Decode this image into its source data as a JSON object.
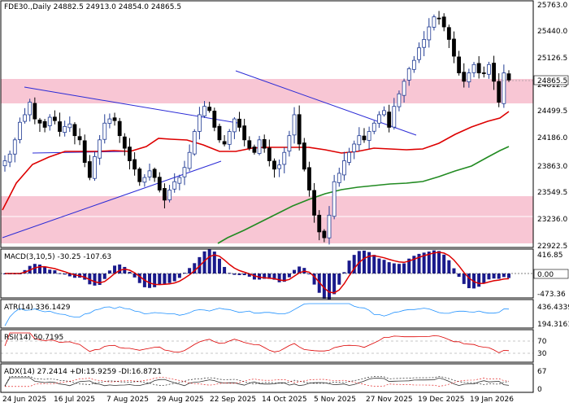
{
  "main": {
    "header": "FDE30.,Daily  24882.5 24913.0 24854.0 24865.5",
    "y_labels": [
      "25763.0",
      "25440.0",
      "25126.5",
      "24812.5",
      "24499.5",
      "24186.0",
      "23863.0",
      "23549.5",
      "23236.0",
      "22922.5"
    ],
    "price_tag": "24865.5",
    "colors": {
      "bull": "#1f3a93",
      "bear": "#000000",
      "ma_fast": "#dd0000",
      "ma_slow": "#228b22",
      "zone": "#f8c6d4",
      "trend": "#2b2bd6"
    }
  },
  "macd": {
    "header": "MACD(3,10,5) -30.25 -107.63",
    "top": "416.85",
    "zero": "0.00",
    "bottom": "-473.36"
  },
  "atr": {
    "header": "ATR(14) 336.1429",
    "top": "436.4339",
    "bottom": "194.3161"
  },
  "rsi": {
    "header": "RSI(14) 50.7195",
    "levels": [
      "70",
      "30"
    ]
  },
  "adx": {
    "header": "ADX(14) 27.2414 +DI:15.9259 -DI:16.8721",
    "levels": [
      "67",
      "0"
    ]
  },
  "x_labels": [
    "24 Jun 2025",
    "16 Jul 2025",
    "7 Aug 2025",
    "29 Aug 2025",
    "22 Sep 2025",
    "14 Oct 2025",
    "5 Nov 2025",
    "27 Nov 2025",
    "19 Dec 2025",
    "19 Jan 2026"
  ],
  "chart_data": {
    "type": "candlestick",
    "symbol": "FDE30.",
    "timeframe": "Daily",
    "last": {
      "open": 24882.5,
      "high": 24913.0,
      "low": 24854.0,
      "close": 24865.5
    },
    "price_range": [
      22922.5,
      25763.0
    ],
    "closes": [
      23900,
      23980,
      24150,
      24360,
      24450,
      24600,
      24400,
      24350,
      24300,
      24420,
      24380,
      24250,
      24310,
      24340,
      24200,
      24150,
      23880,
      23700,
      23950,
      24150,
      24350,
      24400,
      24380,
      24200,
      24050,
      23900,
      23800,
      23650,
      23700,
      23780,
      23700,
      23550,
      23430,
      23550,
      23650,
      23700,
      23820,
      24000,
      24250,
      24450,
      24550,
      24500,
      24300,
      24150,
      24100,
      24250,
      24400,
      24300,
      24150,
      24050,
      24000,
      24150,
      24050,
      23900,
      23800,
      23850,
      24000,
      24200,
      24450,
      24100,
      23800,
      23550,
      23250,
      23050,
      22980,
      23250,
      23650,
      23750,
      23900,
      24000,
      24100,
      24200,
      24150,
      24250,
      24350,
      24450,
      24500,
      24300,
      24550,
      24700,
      24850,
      25000,
      25100,
      25250,
      25350,
      25500,
      25620,
      25600,
      25500,
      25350,
      25150,
      24950,
      24850,
      24950,
      25050,
      24950,
      24950,
      25050,
      24850,
      24600,
      24950,
      24865.5
    ],
    "ma_fast_last": 24499.5,
    "ma_slow_last": 24120,
    "indicators": {
      "MACD": {
        "params": [
          3,
          10,
          5
        ],
        "main": -30.25,
        "signal": -107.63,
        "range": [
          -473.36,
          416.85
        ]
      },
      "ATR": {
        "period": 14,
        "value": 336.1429,
        "range": [
          194.3161,
          436.4339
        ]
      },
      "RSI": {
        "period": 14,
        "value": 50.7195,
        "levels": [
          70,
          30
        ]
      },
      "ADX": {
        "period": 14,
        "value": 27.2414,
        "plus_di": 15.9259,
        "minus_di": 16.8721,
        "levels": [
          67,
          0
        ]
      }
    }
  }
}
